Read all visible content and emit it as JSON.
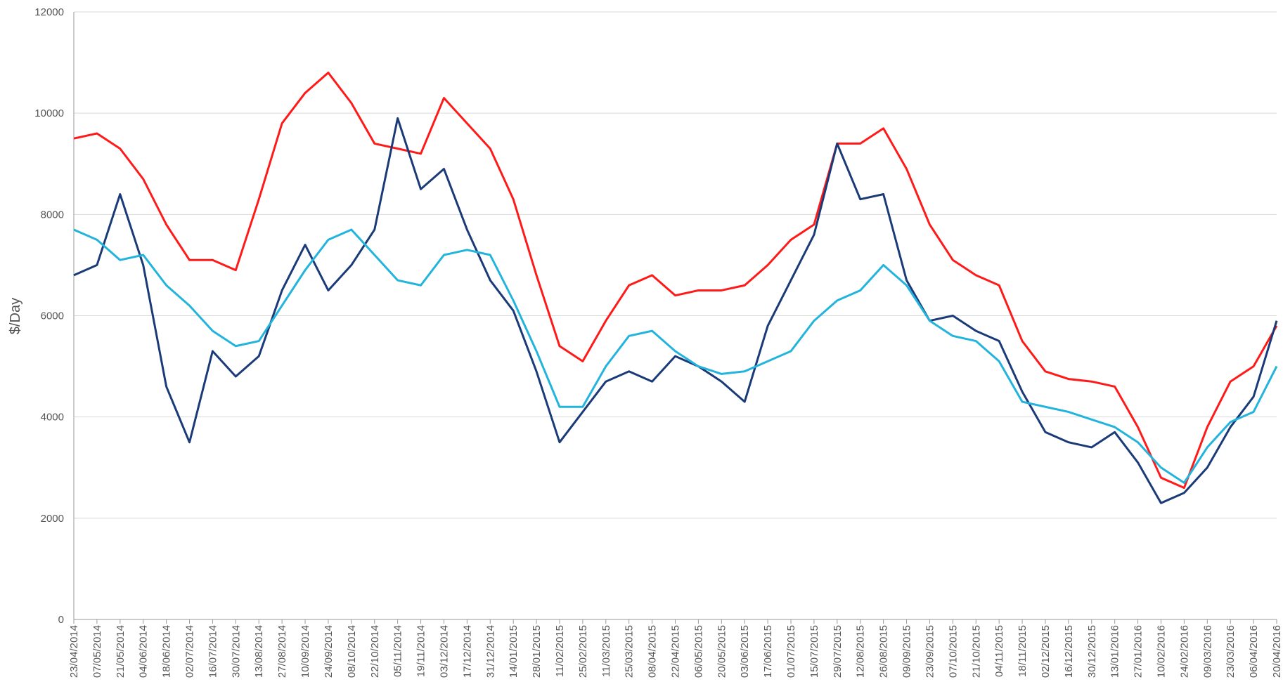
{
  "chart_data": {
    "type": "line",
    "y_label": "$/Day",
    "categories": [
      "23/04/2014",
      "07/05/2014",
      "21/05/2014",
      "04/06/2014",
      "18/06/2014",
      "02/07/2014",
      "16/07/2014",
      "30/07/2014",
      "13/08/2014",
      "27/08/2014",
      "10/09/2014",
      "24/09/2014",
      "08/10/2014",
      "22/10/2014",
      "05/11/2014",
      "19/11/2014",
      "03/12/2014",
      "17/12/2014",
      "31/12/2014",
      "14/01/2015",
      "28/01/2015",
      "11/02/2015",
      "25/02/2015",
      "11/03/2015",
      "25/03/2015",
      "08/04/2015",
      "22/04/2015",
      "06/05/2015",
      "20/05/2015",
      "03/06/2015",
      "17/06/2015",
      "01/07/2015",
      "15/07/2015",
      "29/07/2015",
      "12/08/2015",
      "26/08/2015",
      "09/09/2015",
      "23/09/2015",
      "07/10/2015",
      "21/10/2015",
      "04/11/2015",
      "18/11/2015",
      "02/12/2015",
      "16/12/2015",
      "30/12/2015",
      "13/01/2016",
      "27/01/2016",
      "10/02/2016",
      "24/02/2016",
      "09/03/2016",
      "23/03/2016",
      "06/04/2016",
      "20/04/2016"
    ],
    "series": [
      {
        "color": "#ff1a1a",
        "values": [
          9500,
          9600,
          9300,
          8700,
          7800,
          7100,
          7100,
          6900,
          8300,
          9800,
          10400,
          10800,
          10200,
          9400,
          9300,
          9200,
          10300,
          9800,
          9300,
          8300,
          6800,
          5400,
          5100,
          5900,
          6600,
          6800,
          6400,
          6500,
          6500,
          6600,
          7000,
          7500,
          7800,
          9400,
          9400,
          9700,
          8900,
          7800,
          7100,
          6800,
          6600,
          5500,
          4900,
          4750,
          4700,
          4600,
          3800,
          2800,
          2600,
          3800,
          4700,
          5000,
          5800
        ]
      },
      {
        "color": "#1a3a78",
        "values": [
          6800,
          7000,
          8400,
          7000,
          4600,
          3500,
          5300,
          4800,
          5200,
          6500,
          7400,
          6500,
          7000,
          7700,
          9900,
          8500,
          8900,
          7700,
          6700,
          6100,
          4900,
          3500,
          4100,
          4700,
          4900,
          4700,
          5200,
          5000,
          4700,
          4300,
          5800,
          6700,
          7600,
          9400,
          8300,
          8400,
          6700,
          5900,
          6000,
          5700,
          5500,
          4500,
          3700,
          3500,
          3400,
          3700,
          3100,
          2300,
          2500,
          3000,
          3800,
          4400,
          5900
        ]
      },
      {
        "color": "#22b4dc",
        "values": [
          7700,
          7500,
          7100,
          7200,
          6600,
          6200,
          5700,
          5400,
          5500,
          6200,
          6900,
          7500,
          7700,
          7200,
          6700,
          6600,
          7200,
          7300,
          7200,
          6300,
          5300,
          4200,
          4200,
          5000,
          5600,
          5700,
          5300,
          5000,
          4850,
          4900,
          5100,
          5300,
          5900,
          6300,
          6500,
          7000,
          6600,
          5900,
          5600,
          5500,
          5100,
          4300,
          4200,
          4100,
          3950,
          3800,
          3500,
          3000,
          2700,
          3400,
          3900,
          4100,
          5000
        ]
      }
    ],
    "ylim": [
      0,
      12000
    ],
    "yticks": [
      0,
      2000,
      4000,
      6000,
      8000,
      10000,
      12000
    ],
    "grid": true
  }
}
